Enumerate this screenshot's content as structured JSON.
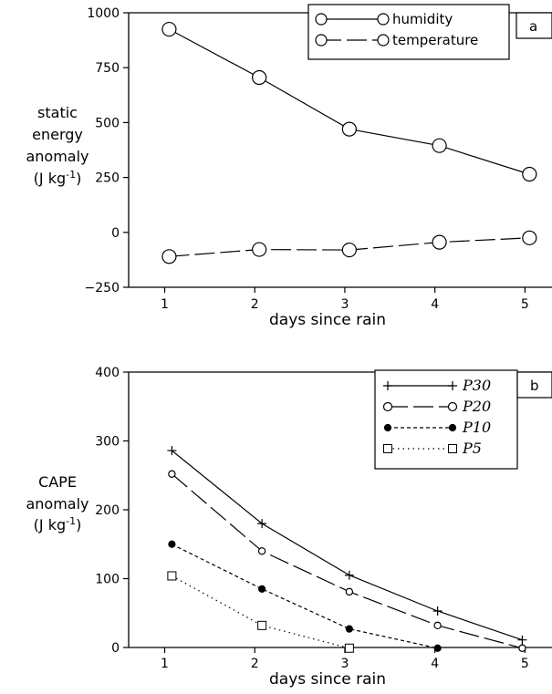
{
  "chart_data": [
    {
      "type": "line",
      "panel_label": "a",
      "xlabel": "days since rain",
      "ylabel_lines": [
        "static",
        "energy",
        "anomaly"
      ],
      "ylabel_unit": {
        "pre": "(J kg",
        "sup": "-1",
        "post": ")"
      },
      "xlim": [
        0.6,
        5.3
      ],
      "ylim": [
        -250,
        1000
      ],
      "xticks": [
        1,
        2,
        3,
        4,
        5
      ],
      "yticks": [
        -250,
        0,
        250,
        500,
        750,
        1000
      ],
      "legend_position": "top-right",
      "series": [
        {
          "name": "humidity",
          "style": "solid",
          "marker": "open-circle",
          "x": [
            1.05,
            2.05,
            3.05,
            4.05,
            5.05
          ],
          "y": [
            925,
            705,
            470,
            395,
            265
          ]
        },
        {
          "name": "temperature",
          "style": "dashed",
          "marker": "open-circle",
          "x": [
            1.05,
            2.05,
            3.05,
            4.05,
            5.05
          ],
          "y": [
            -110,
            -78,
            -80,
            -45,
            -25
          ]
        }
      ]
    },
    {
      "type": "line",
      "panel_label": "b",
      "xlabel": "days since rain",
      "ylabel_lines": [
        "CAPE",
        "anomaly"
      ],
      "ylabel_unit": {
        "pre": "(J kg",
        "sup": "-1",
        "post": ")"
      },
      "xlim": [
        0.6,
        5.3
      ],
      "ylim": [
        0,
        400
      ],
      "xticks": [
        1,
        2,
        3,
        4,
        5
      ],
      "yticks": [
        0,
        100,
        200,
        300,
        400
      ],
      "legend_position": "top-right",
      "series": [
        {
          "name": "P30",
          "style": "solid",
          "marker": "plus",
          "x": [
            1.08,
            2.08,
            3.05,
            4.03,
            4.97
          ],
          "y": [
            286,
            180,
            105,
            53,
            11
          ]
        },
        {
          "name": "P20",
          "style": "dashed",
          "marker": "open-circle",
          "x": [
            1.08,
            2.08,
            3.05,
            4.03,
            4.97
          ],
          "y": [
            252,
            140,
            81,
            32,
            -1
          ]
        },
        {
          "name": "P10",
          "style": "short-dashed",
          "marker": "filled-circle",
          "x": [
            1.08,
            2.08,
            3.05,
            4.03
          ],
          "y": [
            150,
            85,
            27,
            -1
          ]
        },
        {
          "name": "P5",
          "style": "dotted",
          "marker": "open-square",
          "x": [
            1.08,
            2.08,
            3.05
          ],
          "y": [
            104,
            32,
            -1
          ]
        }
      ]
    }
  ]
}
